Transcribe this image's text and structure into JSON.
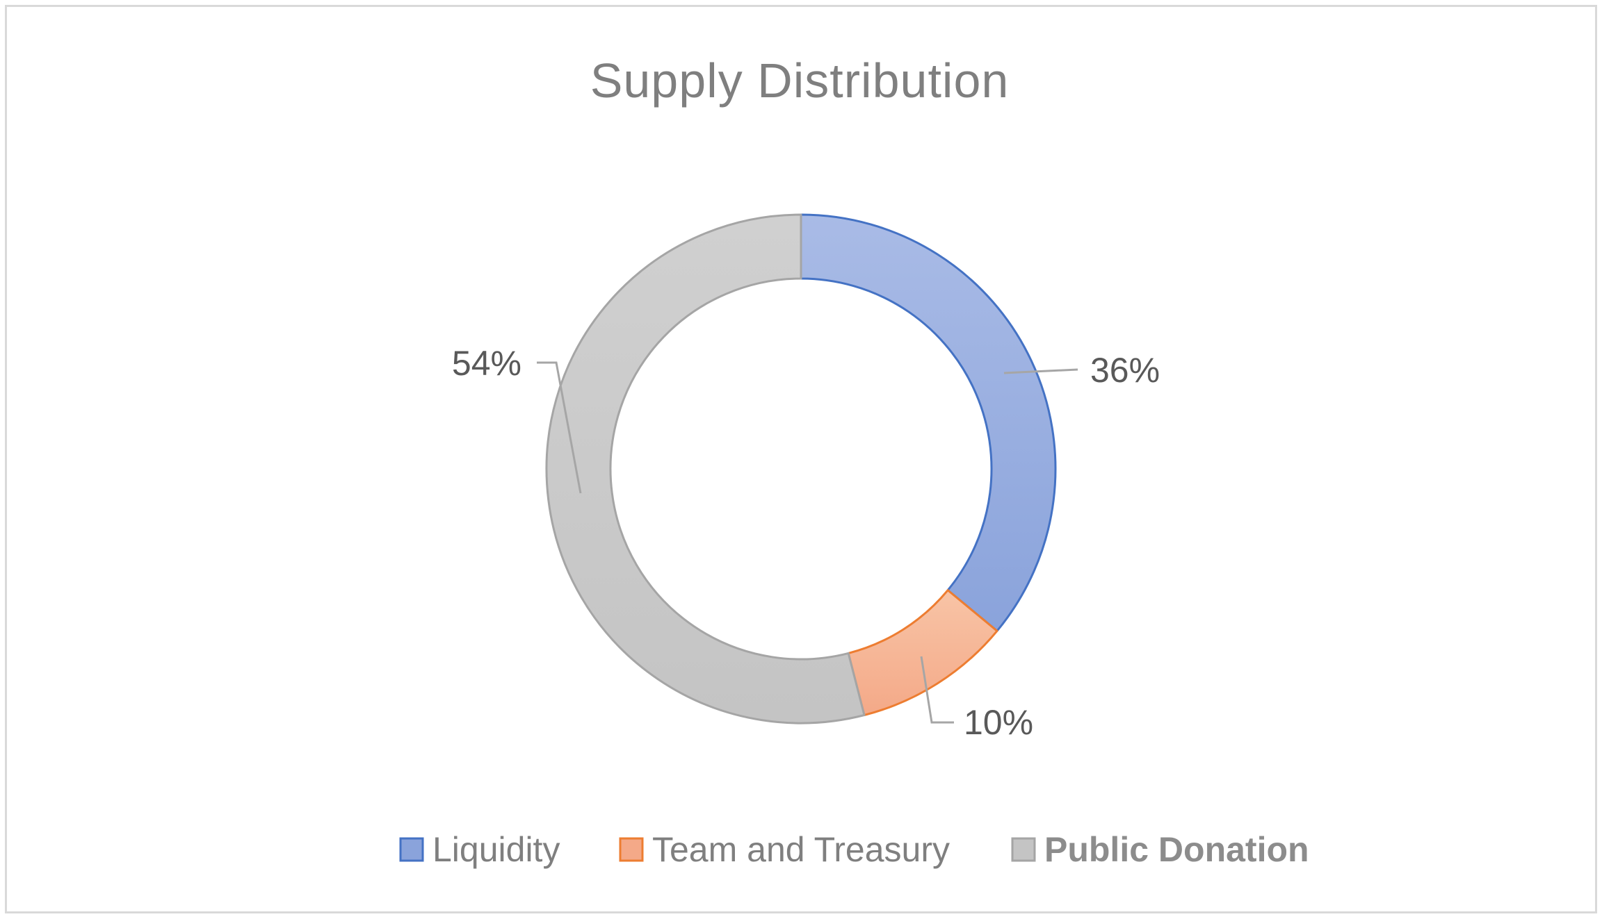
{
  "chart_data": {
    "type": "pie",
    "variant": "donut",
    "title": "Supply Distribution",
    "categories": [
      "Liquidity",
      "Team and Treasury",
      "Public Donation"
    ],
    "values": [
      36,
      10,
      54
    ],
    "labels": [
      "36%",
      "10%",
      "54%"
    ],
    "unit": "%",
    "legend_position": "bottom",
    "colors": {
      "Liquidity": {
        "fill_light": "#a9bbe6",
        "fill_dark": "#8aa3db",
        "stroke": "#4472c4"
      },
      "Team and Treasury": {
        "fill_light": "#f8c4a6",
        "fill_dark": "#f4a988",
        "stroke": "#ed7d31"
      },
      "Public Donation": {
        "fill_light": "#d0d0d0",
        "fill_dark": "#c4c4c4",
        "stroke": "#a5a5a5"
      }
    }
  }
}
